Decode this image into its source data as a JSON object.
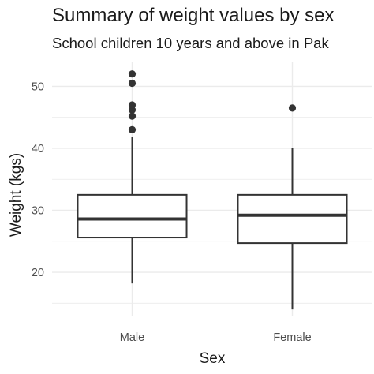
{
  "chart_data": {
    "type": "boxplot",
    "title": "Summary of weight values by sex",
    "subtitle": "School children 10 years and above in Pak",
    "xlabel": "Sex",
    "ylabel": "Weight (kgs)",
    "categories": [
      "Male",
      "Female"
    ],
    "ylim": [
      13,
      54
    ],
    "yticks": [
      20,
      30,
      40,
      50
    ],
    "grid": true,
    "boxes": [
      {
        "category": "Male",
        "whisker_low": 18.2,
        "q1": 25.6,
        "median": 28.6,
        "q3": 32.5,
        "whisker_high": 41.8,
        "outliers": [
          43.0,
          45.2,
          46.2,
          47.0,
          50.5,
          52.0
        ]
      },
      {
        "category": "Female",
        "whisker_low": 14.0,
        "q1": 24.7,
        "median": 29.2,
        "q3": 32.5,
        "whisker_high": 40.1,
        "outliers": [
          46.5
        ]
      }
    ],
    "colors": {
      "box_stroke": "#333333",
      "point": "#333333",
      "grid": "#ebebeb",
      "text": "#4d4d4d"
    }
  }
}
